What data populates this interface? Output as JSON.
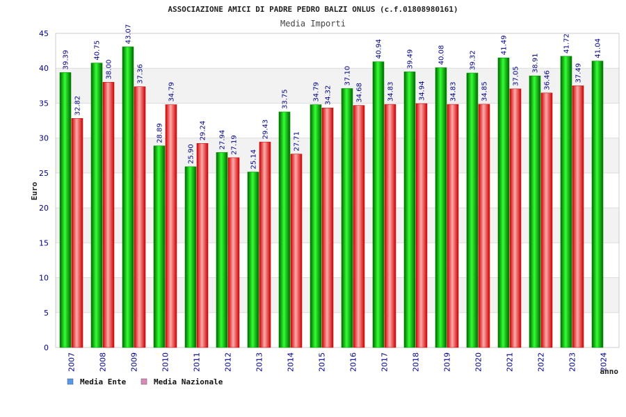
{
  "chart_data": {
    "type": "bar",
    "title": "ASSOCIAZIONE AMICI DI PADRE PEDRO BALZI ONLUS (c.f.01808980161)",
    "subtitle": "Media Importi",
    "xlabel": "anno",
    "ylabel": "Euro",
    "ylim": [
      0,
      45
    ],
    "yticks": [
      "0",
      "5",
      "10",
      "15",
      "20",
      "25",
      "30",
      "35",
      "40",
      "45"
    ],
    "categories": [
      "2007",
      "2008",
      "2009",
      "2010",
      "2011",
      "2012",
      "2013",
      "2014",
      "2015",
      "2016",
      "2017",
      "2018",
      "2019",
      "2020",
      "2021",
      "2022",
      "2023",
      "2024"
    ],
    "series": [
      {
        "name": "Media Ente",
        "color": "#00aa00",
        "values": [
          39.39,
          40.75,
          43.07,
          28.89,
          25.9,
          27.94,
          25.14,
          33.75,
          34.79,
          37.1,
          40.94,
          39.49,
          40.08,
          39.32,
          41.49,
          38.91,
          41.72,
          41.04
        ],
        "labels": [
          "39.39",
          "40.75",
          "43.07",
          "28.89",
          "25.90",
          "27.94",
          "25.14",
          "33.75",
          "34.79",
          "37.10",
          "40.94",
          "39.49",
          "40.08",
          "39.32",
          "41.49",
          "38.91",
          "41.72",
          "41.04"
        ]
      },
      {
        "name": "Media Nazionale",
        "color": "#dd2222",
        "values": [
          32.82,
          38.0,
          37.36,
          34.79,
          29.24,
          27.19,
          29.43,
          27.71,
          34.32,
          34.68,
          34.83,
          34.94,
          34.83,
          34.85,
          37.05,
          36.46,
          37.49,
          null
        ],
        "labels": [
          "32.82",
          "38.00",
          "37.36",
          "34.79",
          "29.24",
          "27.19",
          "29.43",
          "27.71",
          "34.32",
          "34.68",
          "34.83",
          "34.94",
          "34.83",
          "34.85",
          "37.05",
          "36.46",
          "37.49",
          null
        ]
      }
    ],
    "legend": [
      {
        "label": "Media Ente",
        "color": "#5599ee"
      },
      {
        "label": "Media Nazionale",
        "color": "#dd88bb"
      }
    ],
    "legend_position": "bottom-left",
    "grid": true
  }
}
